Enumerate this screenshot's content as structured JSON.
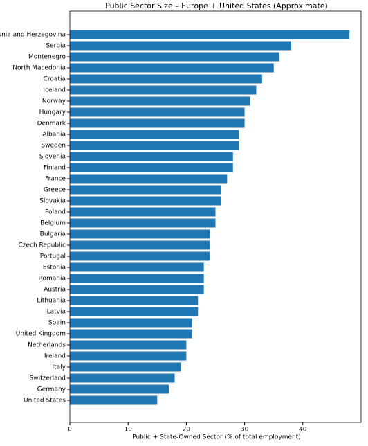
{
  "chart_data": {
    "type": "barh",
    "title": "Public Sector Size – Europe + United States (Approximate)",
    "x_label": "Public + State-Owned Sector (% of total employment)",
    "categories": [
      "Bosnia and Herzegovina",
      "Serbia",
      "Montenegro",
      "North Macedonia",
      "Croatia",
      "Iceland",
      "Norway",
      "Hungary",
      "Denmark",
      "Albania",
      "Sweden",
      "Slovenia",
      "Finland",
      "France",
      "Greece",
      "Slovakia",
      "Poland",
      "Belgium",
      "Bulgaria",
      "Czech Republic",
      "Portugal",
      "Estonia",
      "Romania",
      "Austria",
      "Lithuania",
      "Latvia",
      "Spain",
      "United Kingdom",
      "Netherlands",
      "Ireland",
      "Italy",
      "Switzerland",
      "Germany",
      "United States"
    ],
    "values": [
      48,
      38,
      36,
      35,
      33,
      32,
      31,
      30,
      30,
      29,
      29,
      28,
      28,
      27,
      26,
      26,
      25,
      25,
      24,
      24,
      24,
      23,
      23,
      23,
      22,
      22,
      21,
      21,
      20,
      20,
      19,
      18,
      17,
      15
    ],
    "color": "#1f77b4",
    "xlim": [
      0,
      50
    ],
    "xticks": [
      0,
      10,
      20,
      30,
      40
    ]
  }
}
